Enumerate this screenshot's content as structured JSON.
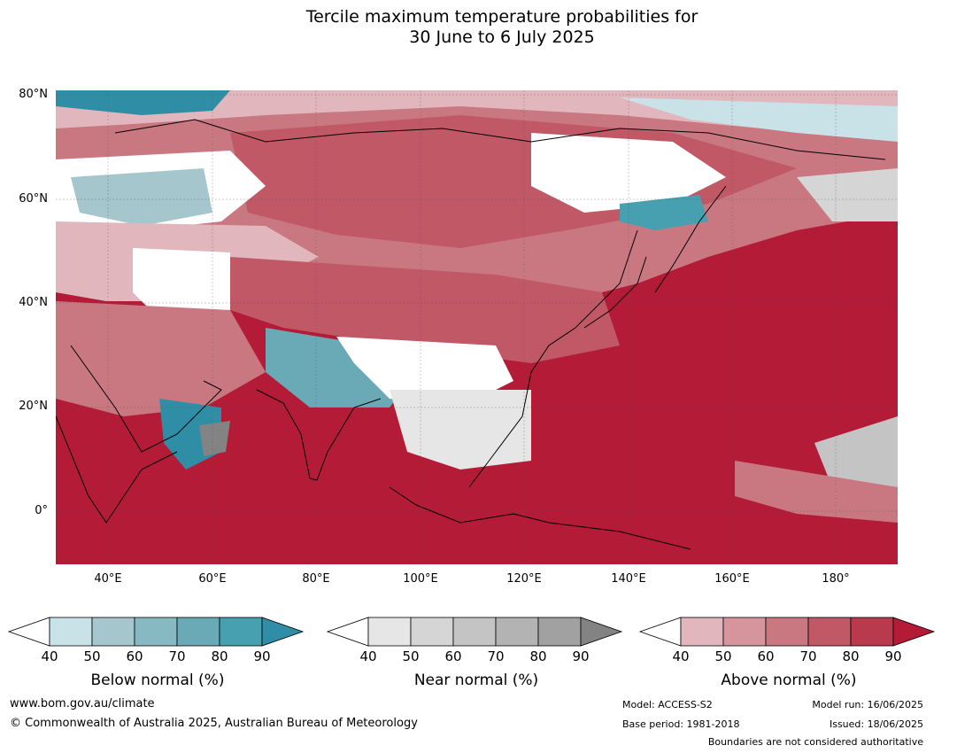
{
  "title": {
    "line1": "Tercile maximum temperature probabilities for",
    "line2": "30 June to 6 July 2025"
  },
  "axes": {
    "lat_labels": [
      "80°N",
      "60°N",
      "40°N",
      "20°N",
      "0°"
    ],
    "lon_labels": [
      "40°E",
      "60°E",
      "80°E",
      "100°E",
      "120°E",
      "140°E",
      "160°E",
      "180°"
    ]
  },
  "colorbars": [
    {
      "name": "below-normal",
      "title": "Below normal (%)",
      "ticks": [
        "40",
        "50",
        "60",
        "70",
        "80",
        "90"
      ],
      "colors": [
        "#ffffff",
        "#c9e2e8",
        "#a5c6cc",
        "#87b9c2",
        "#6aaab7",
        "#47a0b0",
        "#2f8ea5"
      ]
    },
    {
      "name": "near-normal",
      "title": "Near normal (%)",
      "ticks": [
        "40",
        "50",
        "60",
        "70",
        "80",
        "90"
      ],
      "colors": [
        "#ffffff",
        "#e6e6e6",
        "#d5d5d5",
        "#c4c4c4",
        "#b3b3b3",
        "#a1a1a1",
        "#838383"
      ]
    },
    {
      "name": "above-normal",
      "title": "Above normal (%)",
      "ticks": [
        "40",
        "50",
        "60",
        "70",
        "80",
        "90"
      ],
      "colors": [
        "#ffffff",
        "#e1b6bc",
        "#d6959c",
        "#c97882",
        "#c05866",
        "#b9394d",
        "#b31b37"
      ]
    }
  ],
  "footer": {
    "website": "www.bom.gov.au/climate",
    "copyright": "© Commonwealth of Australia 2025, Australian Bureau of Meteorology",
    "model": "Model: ACCESS-S2",
    "base_period": "Base period: 1981-2018",
    "model_run": "Model run: 16/06/2025",
    "issued": "Issued: 18/06/2025",
    "disclaimer": "Boundaries are not considered authoritative"
  }
}
